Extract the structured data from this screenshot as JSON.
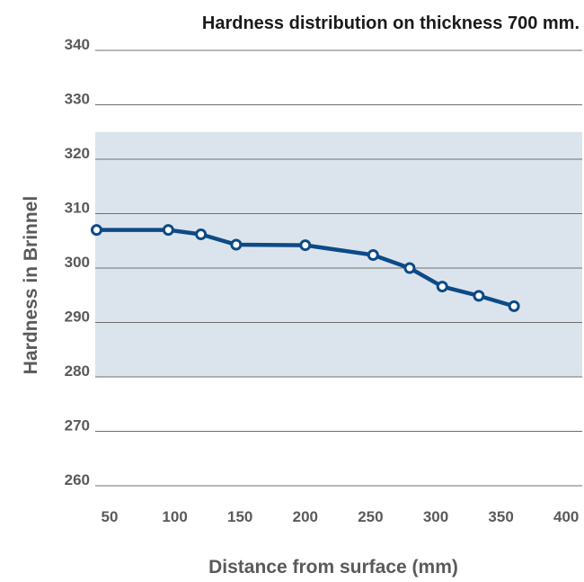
{
  "chart_data": {
    "type": "line",
    "title": "Hardness distribution on thickness 700 mm.",
    "xlabel": "Distance from surface (mm)",
    "ylabel": "Hardness in Brinnel",
    "xlim": [
      50,
      400
    ],
    "ylim": [
      260,
      340
    ],
    "x_ticks": [
      "50",
      "100",
      "150",
      "200",
      "250",
      "300",
      "350",
      "400"
    ],
    "y_ticks": [
      "340",
      "330",
      "320",
      "310",
      "300",
      "290",
      "280",
      "270",
      "260"
    ],
    "shaded_band": [
      280,
      325
    ],
    "grid": true,
    "series": [
      {
        "x": [
          40,
          95,
          120,
          147,
          200,
          252,
          280,
          305,
          333,
          360
        ],
        "y": [
          307,
          307,
          306.2,
          304.3,
          304.2,
          302.4,
          300,
          296.6,
          294.9,
          293
        ]
      }
    ],
    "colors": {
      "line": "#0d4a87",
      "marker_fill": "#ffffff",
      "band": "#dbe4ed",
      "grid": "#6f6f6f"
    }
  }
}
